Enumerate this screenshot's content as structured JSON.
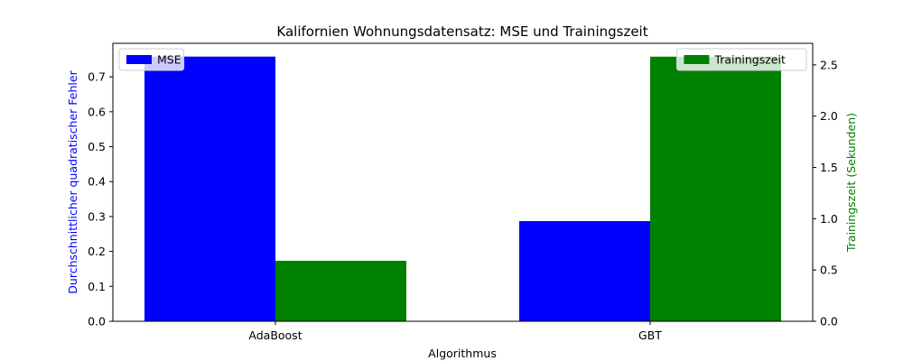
{
  "chart_data": {
    "type": "bar",
    "title": "Kalifornien Wohnungsdatensatz: MSE und Trainingszeit",
    "xlabel": "Algorithmus",
    "categories": [
      "AdaBoost",
      "GBT"
    ],
    "series": [
      {
        "name": "MSE",
        "axis": "left",
        "color": "#0000ff",
        "values": [
          0.758,
          0.287
        ]
      },
      {
        "name": "Trainingszeit",
        "axis": "right",
        "color": "#008000",
        "values": [
          0.59,
          2.58
        ]
      }
    ],
    "y_left": {
      "label": "Durchschnittlicher quadratischer Fehler",
      "color": "#0000ff",
      "ylim": [
        0,
        0.796
      ],
      "ticks": [
        "0.0",
        "0.1",
        "0.2",
        "0.3",
        "0.4",
        "0.5",
        "0.6",
        "0.7"
      ]
    },
    "y_right": {
      "label": "Trainingszeit (Sekunden)",
      "color": "#008000",
      "ylim": [
        0,
        2.71
      ],
      "ticks": [
        "0.0",
        "0.5",
        "1.0",
        "1.5",
        "2.0",
        "2.5"
      ]
    },
    "legends": [
      {
        "series": "MSE",
        "placement": "upper-left"
      },
      {
        "series": "Trainingszeit",
        "placement": "upper-right"
      }
    ],
    "grid": false
  }
}
